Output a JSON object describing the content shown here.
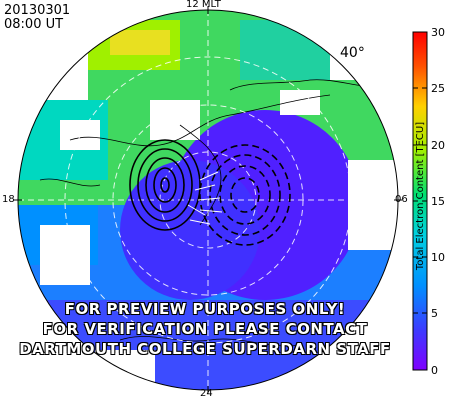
{
  "header": {
    "date": "20130301",
    "time": "08:00 UT"
  },
  "mlt_labels": {
    "top": "12 MLT",
    "left": "18",
    "right": "06",
    "bottom": "24"
  },
  "latitude_label": "40°",
  "watermark": [
    "FOR PREVIEW PURPOSES ONLY!",
    "FOR VERIFICATION PLEASE CONTACT",
    "DARTMOUTH COLLEGE SUPERDARN STAFF"
  ],
  "colorbar": {
    "title": "Total Electron Content [TECU]",
    "ticks": [
      "30",
      "25",
      "20",
      "15",
      "10",
      "5",
      "0"
    ],
    "min": 0,
    "max": 30,
    "colors": [
      "#7f00ff",
      "#3c3cff",
      "#0090ff",
      "#00e5e5",
      "#00e060",
      "#a0f000",
      "#ffd000",
      "#ff5000",
      "#ff0000"
    ]
  }
}
